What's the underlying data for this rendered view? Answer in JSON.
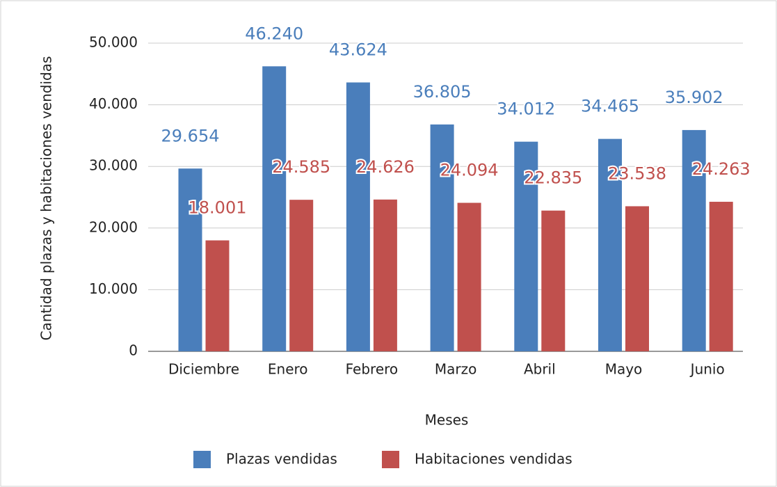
{
  "chart_data": {
    "type": "bar",
    "x_label": "Meses",
    "y_label": "Cantidad plazas y habitaciones vendidas",
    "categories": [
      "Diciembre",
      "Enero",
      "Febrero",
      "Marzo",
      "Abril",
      "Mayo",
      "Junio"
    ],
    "series": [
      {
        "name": "Plazas vendidas",
        "color": "#4a7ebb",
        "values": [
          29654,
          46240,
          43624,
          36805,
          34012,
          34465,
          35902
        ],
        "value_labels": [
          "29.654",
          "46.240",
          "43.624",
          "36.805",
          "34.012",
          "34.465",
          "35.902"
        ]
      },
      {
        "name": "Habitaciones vendidas",
        "color": "#c0504d",
        "values": [
          18001,
          24585,
          24626,
          24094,
          22835,
          23538,
          24263
        ],
        "value_labels": [
          "18.001",
          "24.585",
          "24.626",
          "24.094",
          "22.835",
          "23.538",
          "24.263"
        ]
      }
    ],
    "ylim": [
      0,
      50000
    ],
    "yticks": [
      0,
      {
        "value": 10000,
        "label": "10.000"
      },
      {
        "value": 20000,
        "label": "20.000"
      },
      {
        "value": 30000,
        "label": "30.000"
      },
      {
        "value": 40000,
        "label": "40.000"
      },
      {
        "value": 50000,
        "label": "50.000"
      }
    ],
    "grid": true,
    "legend": "bottom"
  }
}
